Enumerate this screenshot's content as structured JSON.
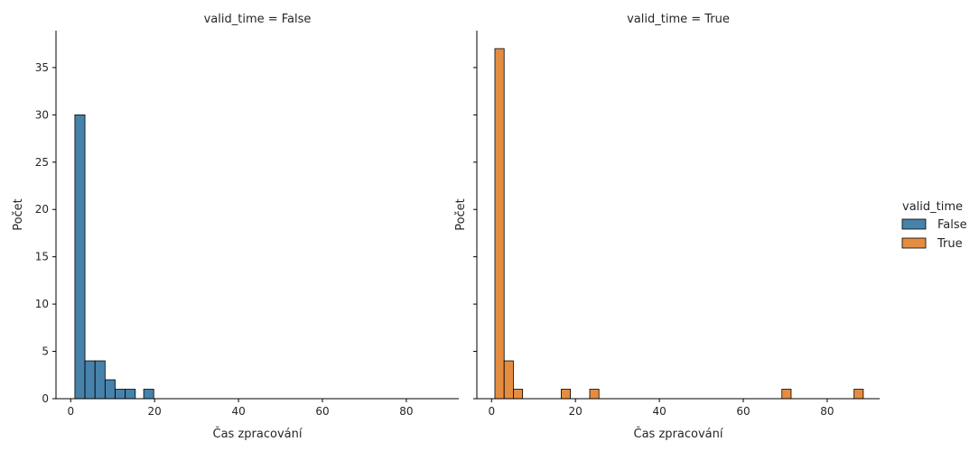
{
  "chart_data": [
    {
      "type": "bar",
      "title": "valid_time = False",
      "xlabel": "Čas zpracování",
      "ylabel": "Počet",
      "xlim": [
        -3.5,
        92.5
      ],
      "ylim": [
        0,
        38.9
      ],
      "xticks": [
        0,
        20,
        40,
        60,
        80
      ],
      "yticks": [
        0,
        5,
        10,
        15,
        20,
        25,
        30,
        35
      ],
      "color": "#3274a1",
      "bins": [
        {
          "x0": 1.0,
          "x1": 3.4,
          "count": 30
        },
        {
          "x0": 3.4,
          "x1": 5.8,
          "count": 4
        },
        {
          "x0": 5.8,
          "x1": 8.2,
          "count": 4
        },
        {
          "x0": 8.2,
          "x1": 10.6,
          "count": 2
        },
        {
          "x0": 10.6,
          "x1": 13.0,
          "count": 1
        },
        {
          "x0": 13.0,
          "x1": 15.4,
          "count": 1
        },
        {
          "x0": 17.4,
          "x1": 19.8,
          "count": 1
        }
      ]
    },
    {
      "type": "bar",
      "title": "valid_time = True",
      "xlabel": "Čas zpracování",
      "ylabel": "Počet",
      "xlim": [
        -3.5,
        92.5
      ],
      "ylim": [
        0,
        38.9
      ],
      "xticks": [
        0,
        20,
        40,
        60,
        80
      ],
      "yticks": [
        0,
        5,
        10,
        15,
        20,
        25,
        30,
        35
      ],
      "color": "#e1812c",
      "bins": [
        {
          "x0": 0.8,
          "x1": 3.0,
          "count": 37
        },
        {
          "x0": 3.0,
          "x1": 5.2,
          "count": 4
        },
        {
          "x0": 5.2,
          "x1": 7.4,
          "count": 1
        },
        {
          "x0": 16.6,
          "x1": 18.8,
          "count": 1
        },
        {
          "x0": 23.4,
          "x1": 25.6,
          "count": 1
        },
        {
          "x0": 69.2,
          "x1": 71.4,
          "count": 1
        },
        {
          "x0": 86.4,
          "x1": 88.6,
          "count": 1
        }
      ]
    }
  ],
  "legend": {
    "title": "valid_time",
    "placement": "right",
    "entries": [
      {
        "label": "False",
        "color": "#3274a1"
      },
      {
        "label": "True",
        "color": "#e1812c"
      }
    ]
  }
}
